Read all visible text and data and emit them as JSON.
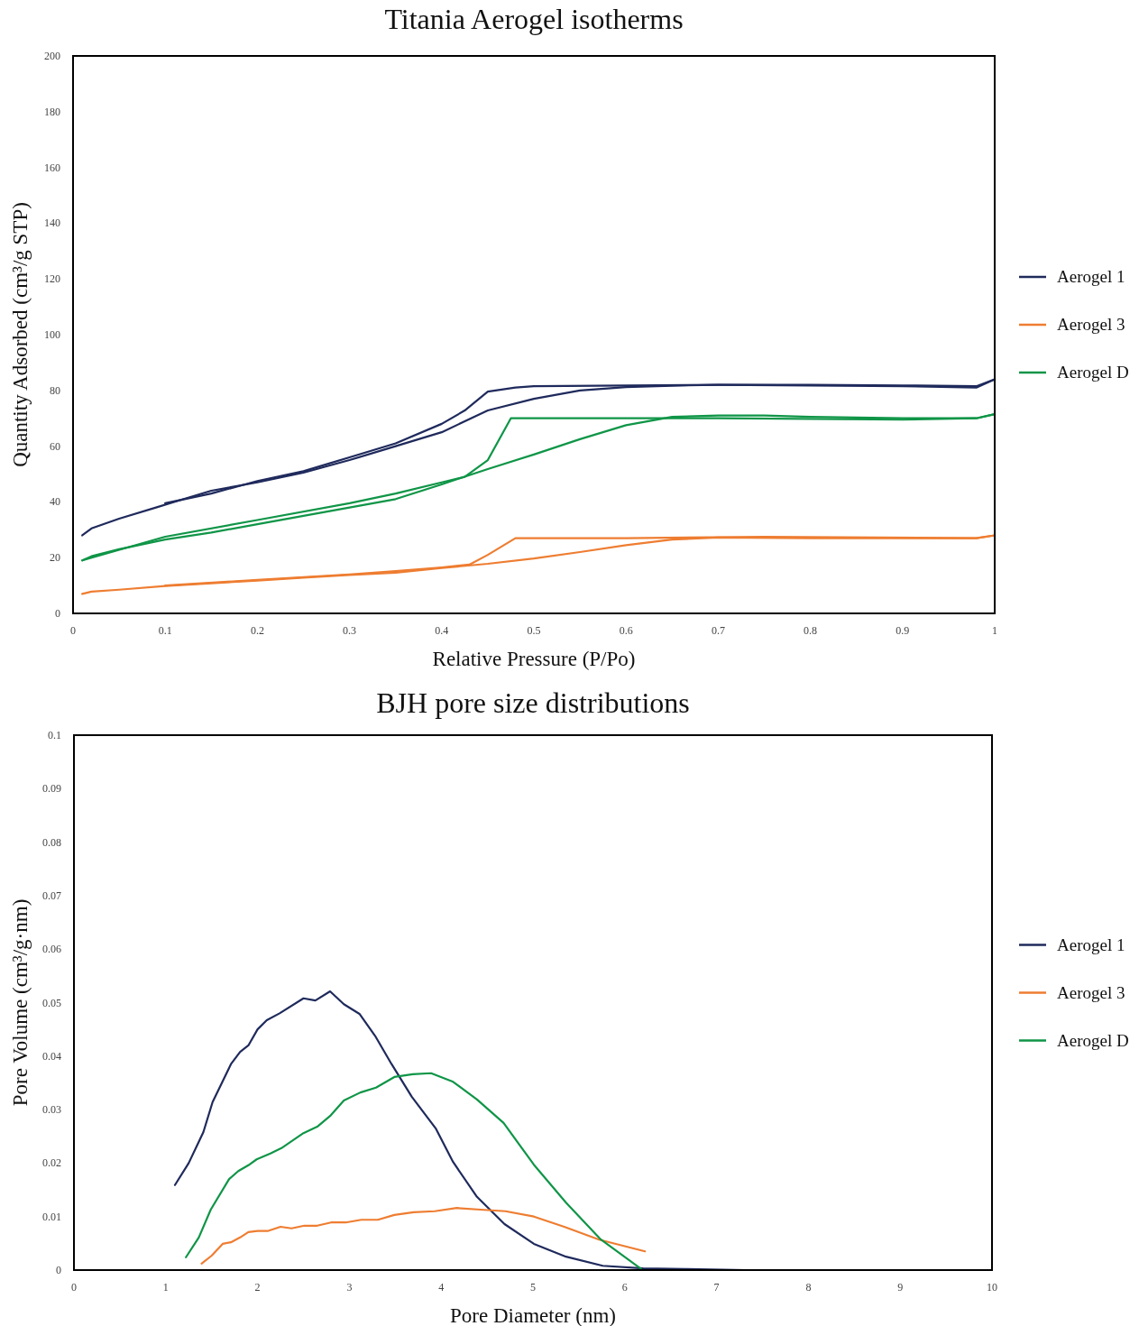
{
  "chart_data": [
    {
      "type": "line",
      "title": "Titania Aerogel isotherms",
      "xlabel": "Relative Pressure (P/Po)",
      "ylabel": "Quantity Adsorbed (cm³/g STP)",
      "xlim": [
        0,
        1
      ],
      "ylim": [
        0,
        200
      ],
      "xticks": [
        0,
        0.1,
        0.2,
        0.3,
        0.4,
        0.5,
        0.6,
        0.7,
        0.8,
        0.9,
        1
      ],
      "yticks": [
        0,
        20,
        40,
        60,
        80,
        100,
        120,
        140,
        160,
        180,
        200
      ],
      "grid": false,
      "legend": "right",
      "marker": "none",
      "line_style": "solid",
      "series": [
        {
          "name": "Aerogel 1",
          "color": "#1f2a5c",
          "x": [
            0.01,
            0.02,
            0.05,
            0.09,
            0.12,
            0.15,
            0.2,
            0.25,
            0.3,
            0.35,
            0.4,
            0.45,
            0.5,
            0.55,
            0.6,
            0.65,
            0.7,
            0.8,
            0.9,
            0.98,
            1.0
          ],
          "values": [
            28,
            30.5,
            34,
            38,
            41,
            44,
            47,
            50.5,
            55,
            60,
            65,
            72.8,
            77,
            80,
            81.2,
            81.7,
            82,
            82,
            81.8,
            81.5,
            84
          ]
        },
        {
          "color": "#1f2a5c",
          "x": [
            0.1,
            0.15,
            0.2,
            0.25,
            0.3,
            0.35,
            0.4,
            0.425,
            0.45,
            0.48,
            0.5,
            0.7,
            0.9,
            0.98,
            1.0
          ],
          "values": [
            39.5,
            43,
            47.5,
            51,
            56,
            61,
            68,
            72.8,
            79.6,
            81,
            81.5,
            82,
            81.5,
            81,
            84
          ]
        },
        {
          "name": "Aerogel 3",
          "color": "#ee7d31",
          "x": [
            0.01,
            0.02,
            0.05,
            0.1,
            0.15,
            0.2,
            0.25,
            0.3,
            0.35,
            0.4,
            0.45,
            0.5,
            0.55,
            0.6,
            0.65,
            0.7,
            0.8,
            0.9,
            0.98,
            1.0
          ],
          "values": [
            7,
            7.8,
            8.5,
            9.8,
            10.8,
            11.8,
            12.8,
            13.8,
            14.6,
            16.3,
            17.8,
            19.7,
            22,
            24.5,
            26.5,
            27.2,
            27,
            27,
            27,
            28
          ]
        },
        {
          "color": "#ee7d31",
          "x": [
            0.1,
            0.2,
            0.3,
            0.35,
            0.4,
            0.43,
            0.45,
            0.48,
            0.6,
            0.75,
            0.98,
            1.0
          ],
          "values": [
            10,
            12,
            14,
            15.2,
            16.5,
            17.5,
            21,
            27,
            27,
            27.5,
            27,
            28
          ]
        },
        {
          "name": "Aerogel D",
          "color": "#0f9547",
          "x": [
            0.01,
            0.02,
            0.05,
            0.1,
            0.15,
            0.2,
            0.25,
            0.3,
            0.35,
            0.4,
            0.45,
            0.5,
            0.55,
            0.6,
            0.65,
            0.7,
            0.75,
            0.8,
            0.9,
            0.98,
            1.0
          ],
          "values": [
            19,
            20.5,
            23,
            26.5,
            29,
            32,
            35,
            38,
            41,
            46.3,
            51.8,
            57,
            62.5,
            67.5,
            70.5,
            71,
            71,
            70.5,
            70,
            70,
            71.5
          ]
        },
        {
          "color": "#0f9547",
          "x": [
            0.01,
            0.1,
            0.2,
            0.3,
            0.35,
            0.4,
            0.425,
            0.45,
            0.475,
            0.5,
            0.6,
            0.7,
            0.9,
            0.98,
            1.0
          ],
          "values": [
            19,
            27.5,
            33.5,
            39.5,
            43,
            47,
            49,
            55,
            70,
            70,
            70,
            70,
            69.5,
            70,
            71.5
          ]
        }
      ]
    },
    {
      "type": "line",
      "title": "BJH pore size distributions",
      "xlabel": "Pore Diameter  (nm)",
      "ylabel": "Pore Volume (cm³/g·nm)",
      "xlim": [
        0,
        10
      ],
      "ylim": [
        0,
        0.1
      ],
      "xticks": [
        0,
        1,
        2,
        3,
        4,
        5,
        6,
        7,
        8,
        9,
        10
      ],
      "yticks": [
        0,
        0.01,
        0.02,
        0.03,
        0.04,
        0.05,
        0.06,
        0.07,
        0.08,
        0.09,
        0.1
      ],
      "grid": false,
      "legend": "right",
      "marker": "none",
      "line_style": "solid",
      "series": [
        {
          "name": "Aerogel 1",
          "color": "#1f2a5c",
          "x": [
            1.1,
            1.25,
            1.41,
            1.51,
            1.71,
            1.81,
            1.9,
            2.0,
            2.1,
            2.24,
            2.5,
            2.63,
            2.79,
            2.94,
            3.11,
            3.28,
            3.46,
            3.68,
            3.94,
            4.13,
            4.39,
            4.69,
            5.01,
            5.36,
            5.76,
            6.2,
            6.66,
            7.32
          ],
          "values": [
            0.0159,
            0.02,
            0.0258,
            0.0314,
            0.0385,
            0.0408,
            0.042,
            0.045,
            0.0467,
            0.048,
            0.0508,
            0.0504,
            0.0521,
            0.0497,
            0.0479,
            0.0438,
            0.0385,
            0.0324,
            0.0265,
            0.0202,
            0.0137,
            0.0086,
            0.0049,
            0.0025,
            0.0008,
            0.0003,
            0.0002,
            0
          ]
        },
        {
          "name": "Aerogel 3",
          "color": "#ee7d31",
          "x": [
            1.39,
            1.5,
            1.62,
            1.71,
            1.81,
            1.9,
            2.0,
            2.11,
            2.25,
            2.37,
            2.51,
            2.65,
            2.8,
            2.96,
            3.13,
            3.31,
            3.49,
            3.7,
            3.93,
            4.17,
            4.43,
            4.7,
            5.01,
            5.34,
            5.72,
            6.22
          ],
          "values": [
            0.0012,
            0.0027,
            0.0049,
            0.0052,
            0.0061,
            0.0071,
            0.0073,
            0.0073,
            0.0081,
            0.0078,
            0.0083,
            0.0083,
            0.0089,
            0.0089,
            0.0094,
            0.0094,
            0.0103,
            0.0108,
            0.011,
            0.0116,
            0.0113,
            0.011,
            0.01,
            0.0081,
            0.0057,
            0.0035
          ]
        },
        {
          "name": "Aerogel D",
          "color": "#0f9547",
          "x": [
            1.22,
            1.36,
            1.49,
            1.69,
            1.79,
            1.9,
            1.99,
            2.14,
            2.26,
            2.5,
            2.65,
            2.79,
            2.94,
            3.12,
            3.29,
            3.49,
            3.69,
            3.89,
            4.13,
            4.39,
            4.68,
            5.01,
            5.36,
            5.74,
            6.18
          ],
          "values": [
            0.0024,
            0.0061,
            0.0113,
            0.017,
            0.0185,
            0.0196,
            0.0207,
            0.0218,
            0.0228,
            0.0256,
            0.0268,
            0.0288,
            0.0317,
            0.0332,
            0.0341,
            0.0361,
            0.0366,
            0.0368,
            0.0352,
            0.0319,
            0.0275,
            0.0197,
            0.0126,
            0.0057,
            0.0002
          ]
        }
      ]
    }
  ]
}
